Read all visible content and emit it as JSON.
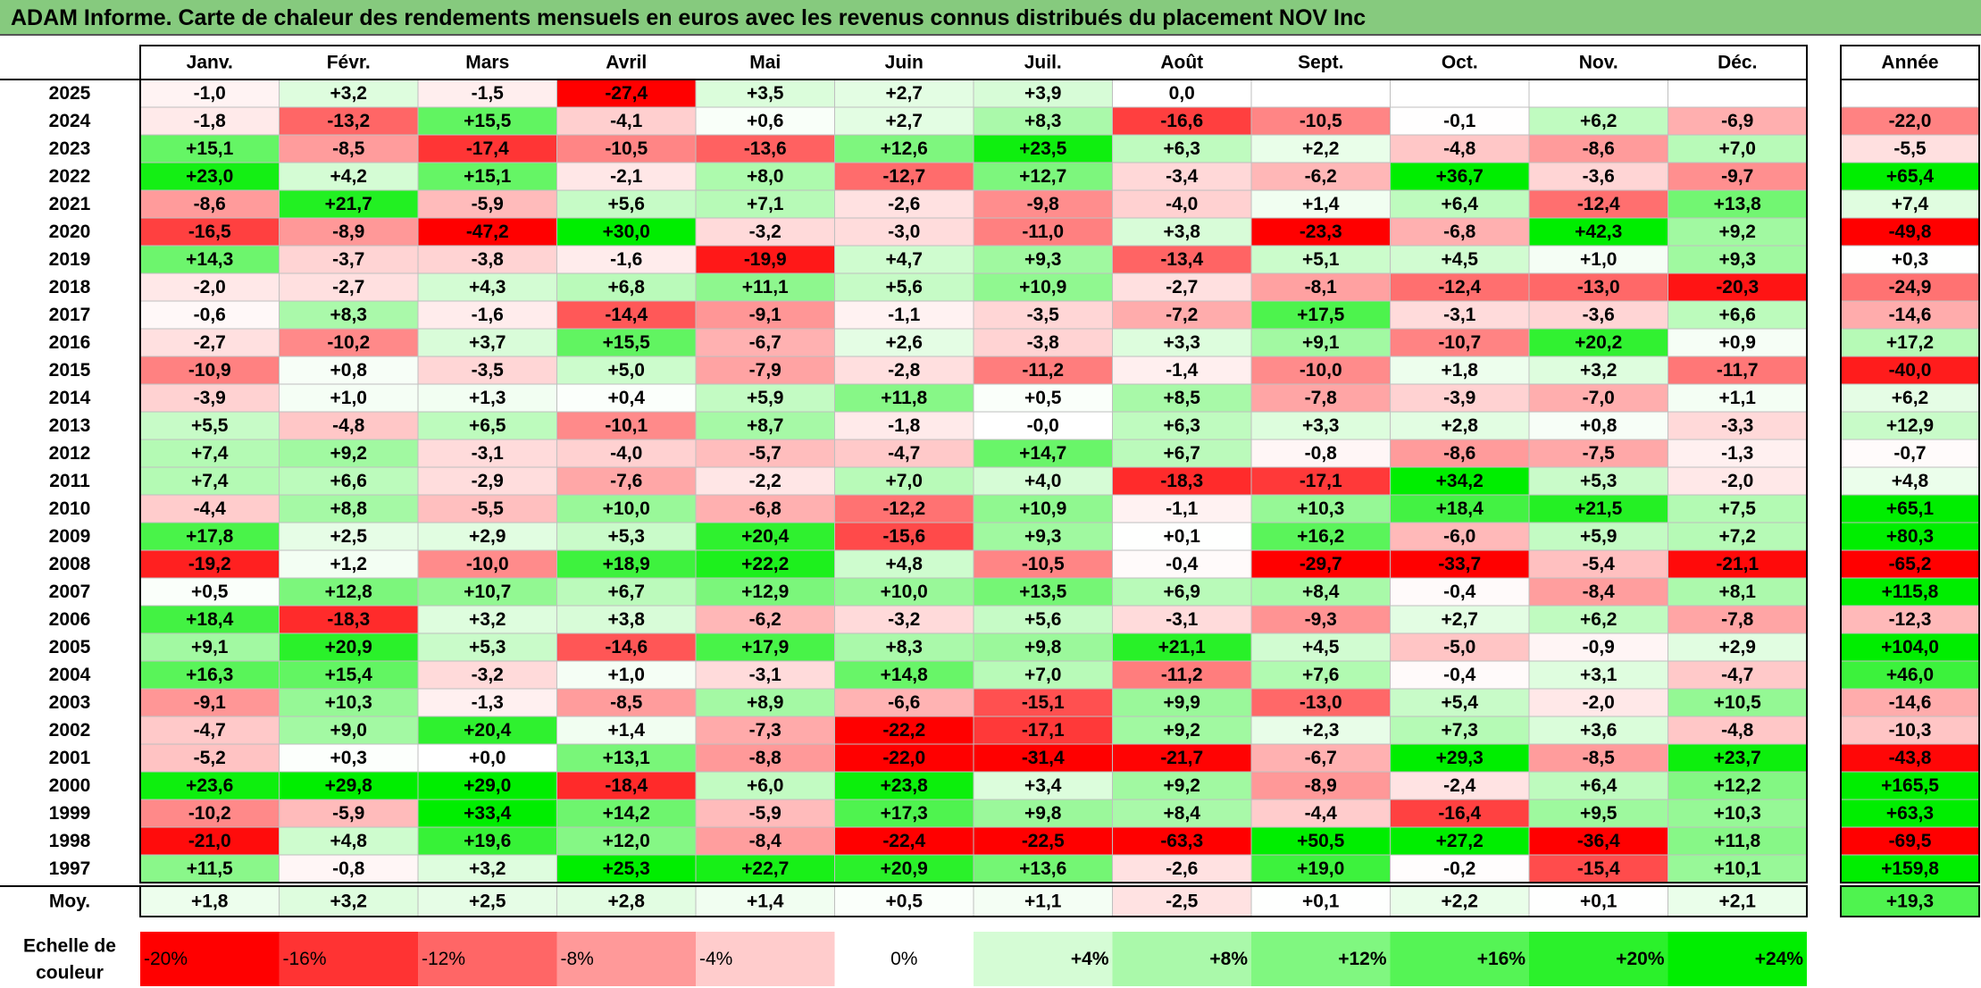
{
  "title": "ADAM Informe. Carte de chaleur des rendements mensuels en euros avec les revenus connus distribués du placement NOV Inc",
  "chart_data": {
    "type": "heatmap",
    "title": "ADAM Informe. Carte de chaleur des rendements mensuels en euros avec les revenus connus distribués du placement NOV Inc",
    "columns": [
      "Janv.",
      "Févr.",
      "Mars",
      "Avril",
      "Mai",
      "Juin",
      "Juil.",
      "Août",
      "Sept.",
      "Oct.",
      "Nov.",
      "Déc."
    ],
    "annual_header": "Année",
    "rows": [
      {
        "year": "2025",
        "values": [
          "-1,0",
          "+3,2",
          "-1,5",
          "-27,4",
          "+3,5",
          "+2,7",
          "+3,9",
          "0,0",
          "",
          "",
          "",
          ""
        ],
        "annual": ""
      },
      {
        "year": "2024",
        "values": [
          "-1,8",
          "-13,2",
          "+15,5",
          "-4,1",
          "+0,6",
          "+2,7",
          "+8,3",
          "-16,6",
          "-10,5",
          "-0,1",
          "+6,2",
          "-6,9"
        ],
        "annual": "-22,0"
      },
      {
        "year": "2023",
        "values": [
          "+15,1",
          "-8,5",
          "-17,4",
          "-10,5",
          "-13,6",
          "+12,6",
          "+23,5",
          "+6,3",
          "+2,2",
          "-4,8",
          "-8,6",
          "+7,0"
        ],
        "annual": "-5,5"
      },
      {
        "year": "2022",
        "values": [
          "+23,0",
          "+4,2",
          "+15,1",
          "-2,1",
          "+8,0",
          "-12,7",
          "+12,7",
          "-3,4",
          "-6,2",
          "+36,7",
          "-3,6",
          "-9,7"
        ],
        "annual": "+65,4"
      },
      {
        "year": "2021",
        "values": [
          "-8,6",
          "+21,7",
          "-5,9",
          "+5,6",
          "+7,1",
          "-2,6",
          "-9,8",
          "-4,0",
          "+1,4",
          "+6,4",
          "-12,4",
          "+13,8"
        ],
        "annual": "+7,4"
      },
      {
        "year": "2020",
        "values": [
          "-16,5",
          "-8,9",
          "-47,2",
          "+30,0",
          "-3,2",
          "-3,0",
          "-11,0",
          "+3,8",
          "-23,3",
          "-6,8",
          "+42,3",
          "+9,2"
        ],
        "annual": "-49,8"
      },
      {
        "year": "2019",
        "values": [
          "+14,3",
          "-3,7",
          "-3,8",
          "-1,6",
          "-19,9",
          "+4,7",
          "+9,3",
          "-13,4",
          "+5,1",
          "+4,5",
          "+1,0",
          "+9,3"
        ],
        "annual": "+0,3"
      },
      {
        "year": "2018",
        "values": [
          "-2,0",
          "-2,7",
          "+4,3",
          "+6,8",
          "+11,1",
          "+5,6",
          "+10,9",
          "-2,7",
          "-8,1",
          "-12,4",
          "-13,0",
          "-20,3"
        ],
        "annual": "-24,9"
      },
      {
        "year": "2017",
        "values": [
          "-0,6",
          "+8,3",
          "-1,6",
          "-14,4",
          "-9,1",
          "-1,1",
          "-3,5",
          "-7,2",
          "+17,5",
          "-3,1",
          "-3,6",
          "+6,6"
        ],
        "annual": "-14,6"
      },
      {
        "year": "2016",
        "values": [
          "-2,7",
          "-10,2",
          "+3,7",
          "+15,5",
          "-6,7",
          "+2,6",
          "-3,8",
          "+3,3",
          "+9,1",
          "-10,7",
          "+20,2",
          "+0,9"
        ],
        "annual": "+17,2"
      },
      {
        "year": "2015",
        "values": [
          "-10,9",
          "+0,8",
          "-3,5",
          "+5,0",
          "-7,9",
          "-2,8",
          "-11,2",
          "-1,4",
          "-10,0",
          "+1,8",
          "+3,2",
          "-11,7"
        ],
        "annual": "-40,0"
      },
      {
        "year": "2014",
        "values": [
          "-3,9",
          "+1,0",
          "+1,3",
          "+0,4",
          "+5,9",
          "+11,8",
          "+0,5",
          "+8,5",
          "-7,8",
          "-3,9",
          "-7,0",
          "+1,1"
        ],
        "annual": "+6,2"
      },
      {
        "year": "2013",
        "values": [
          "+5,5",
          "-4,8",
          "+6,5",
          "-10,1",
          "+8,7",
          "-1,8",
          "-0,0",
          "+6,3",
          "+3,3",
          "+2,8",
          "+0,8",
          "-3,3"
        ],
        "annual": "+12,9"
      },
      {
        "year": "2012",
        "values": [
          "+7,4",
          "+9,2",
          "-3,1",
          "-4,0",
          "-5,7",
          "-4,7",
          "+14,7",
          "+6,7",
          "-0,8",
          "-8,6",
          "-7,5",
          "-1,3"
        ],
        "annual": "-0,7"
      },
      {
        "year": "2011",
        "values": [
          "+7,4",
          "+6,6",
          "-2,9",
          "-7,6",
          "-2,2",
          "+7,0",
          "+4,0",
          "-18,3",
          "-17,1",
          "+34,2",
          "+5,3",
          "-2,0"
        ],
        "annual": "+4,8"
      },
      {
        "year": "2010",
        "values": [
          "-4,4",
          "+8,8",
          "-5,5",
          "+10,0",
          "-6,8",
          "-12,2",
          "+10,9",
          "-1,1",
          "+10,3",
          "+18,4",
          "+21,5",
          "+7,5"
        ],
        "annual": "+65,1"
      },
      {
        "year": "2009",
        "values": [
          "+17,8",
          "+2,5",
          "+2,9",
          "+5,3",
          "+20,4",
          "-15,6",
          "+9,3",
          "+0,1",
          "+16,2",
          "-6,0",
          "+5,9",
          "+7,2"
        ],
        "annual": "+80,3"
      },
      {
        "year": "2008",
        "values": [
          "-19,2",
          "+1,2",
          "-10,0",
          "+18,9",
          "+22,2",
          "+4,8",
          "-10,5",
          "-0,4",
          "-29,7",
          "-33,7",
          "-5,4",
          "-21,1"
        ],
        "annual": "-65,2"
      },
      {
        "year": "2007",
        "values": [
          "+0,5",
          "+12,8",
          "+10,7",
          "+6,7",
          "+12,9",
          "+10,0",
          "+13,5",
          "+6,9",
          "+8,4",
          "-0,4",
          "-8,4",
          "+8,1"
        ],
        "annual": "+115,8"
      },
      {
        "year": "2006",
        "values": [
          "+18,4",
          "-18,3",
          "+3,2",
          "+3,8",
          "-6,2",
          "-3,2",
          "+5,6",
          "-3,1",
          "-9,3",
          "+2,7",
          "+6,2",
          "-7,8"
        ],
        "annual": "-12,3"
      },
      {
        "year": "2005",
        "values": [
          "+9,1",
          "+20,9",
          "+5,3",
          "-14,6",
          "+17,9",
          "+8,3",
          "+9,8",
          "+21,1",
          "+4,5",
          "-5,0",
          "-0,9",
          "+2,9"
        ],
        "annual": "+104,0"
      },
      {
        "year": "2004",
        "values": [
          "+16,3",
          "+15,4",
          "-3,2",
          "+1,0",
          "-3,1",
          "+14,8",
          "+7,0",
          "-11,2",
          "+7,6",
          "-0,4",
          "+3,1",
          "-4,7"
        ],
        "annual": "+46,0"
      },
      {
        "year": "2003",
        "values": [
          "-9,1",
          "+10,3",
          "-1,3",
          "-8,5",
          "+8,9",
          "-6,6",
          "-15,1",
          "+9,9",
          "-13,0",
          "+5,4",
          "-2,0",
          "+10,5"
        ],
        "annual": "-14,6"
      },
      {
        "year": "2002",
        "values": [
          "-4,7",
          "+9,0",
          "+20,4",
          "+1,4",
          "-7,3",
          "-22,2",
          "-17,1",
          "+9,2",
          "+2,3",
          "+7,3",
          "+3,6",
          "-4,8"
        ],
        "annual": "-10,3"
      },
      {
        "year": "2001",
        "values": [
          "-5,2",
          "+0,3",
          "+0,0",
          "+13,1",
          "-8,8",
          "-22,0",
          "-31,4",
          "-21,7",
          "-6,7",
          "+29,3",
          "-8,5",
          "+23,7"
        ],
        "annual": "-43,8"
      },
      {
        "year": "2000",
        "values": [
          "+23,6",
          "+29,8",
          "+29,0",
          "-18,4",
          "+6,0",
          "+23,8",
          "+3,4",
          "+9,2",
          "-8,9",
          "-2,4",
          "+6,4",
          "+12,2"
        ],
        "annual": "+165,5"
      },
      {
        "year": "1999",
        "values": [
          "-10,2",
          "-5,9",
          "+33,4",
          "+14,2",
          "-5,9",
          "+17,3",
          "+9,8",
          "+8,4",
          "-4,4",
          "-16,4",
          "+9,5",
          "+10,3"
        ],
        "annual": "+63,3"
      },
      {
        "year": "1998",
        "values": [
          "-21,0",
          "+4,8",
          "+19,6",
          "+12,0",
          "-8,4",
          "-22,4",
          "-22,5",
          "-63,3",
          "+50,5",
          "+27,2",
          "-36,4",
          "+11,8"
        ],
        "annual": "-69,5"
      },
      {
        "year": "1997",
        "values": [
          "+11,5",
          "-0,8",
          "+3,2",
          "+25,3",
          "+22,7",
          "+20,9",
          "+13,6",
          "-2,6",
          "+19,0",
          "-0,2",
          "-15,4",
          "+10,1"
        ],
        "annual": "+159,8"
      }
    ],
    "average": {
      "label": "Moy.",
      "values": [
        "+1,8",
        "+3,2",
        "+2,5",
        "+2,8",
        "+1,4",
        "+0,5",
        "+1,1",
        "-2,5",
        "+0,1",
        "+2,2",
        "+0,1",
        "+2,1"
      ],
      "annual": "+19,3"
    },
    "scale": {
      "label_line1": "Echelle de",
      "label_line2": "couleur",
      "stops": [
        {
          "label": "-20%",
          "value": -20
        },
        {
          "label": "-16%",
          "value": -16
        },
        {
          "label": "-12%",
          "value": -12
        },
        {
          "label": "-8%",
          "value": -8
        },
        {
          "label": "-4%",
          "value": -4
        },
        {
          "label": "0%",
          "value": 0
        },
        {
          "label": "+4%",
          "value": 4
        },
        {
          "label": "+8%",
          "value": 8
        },
        {
          "label": "+12%",
          "value": 12
        },
        {
          "label": "+16%",
          "value": 16
        },
        {
          "label": "+20%",
          "value": 20
        },
        {
          "label": "+24%",
          "value": 24
        }
      ]
    },
    "colors": {
      "negative_max": "#ff0000",
      "neutral": "#ffffff",
      "positive_max": "#00ee00",
      "title_bar": "#86ca7e"
    }
  }
}
